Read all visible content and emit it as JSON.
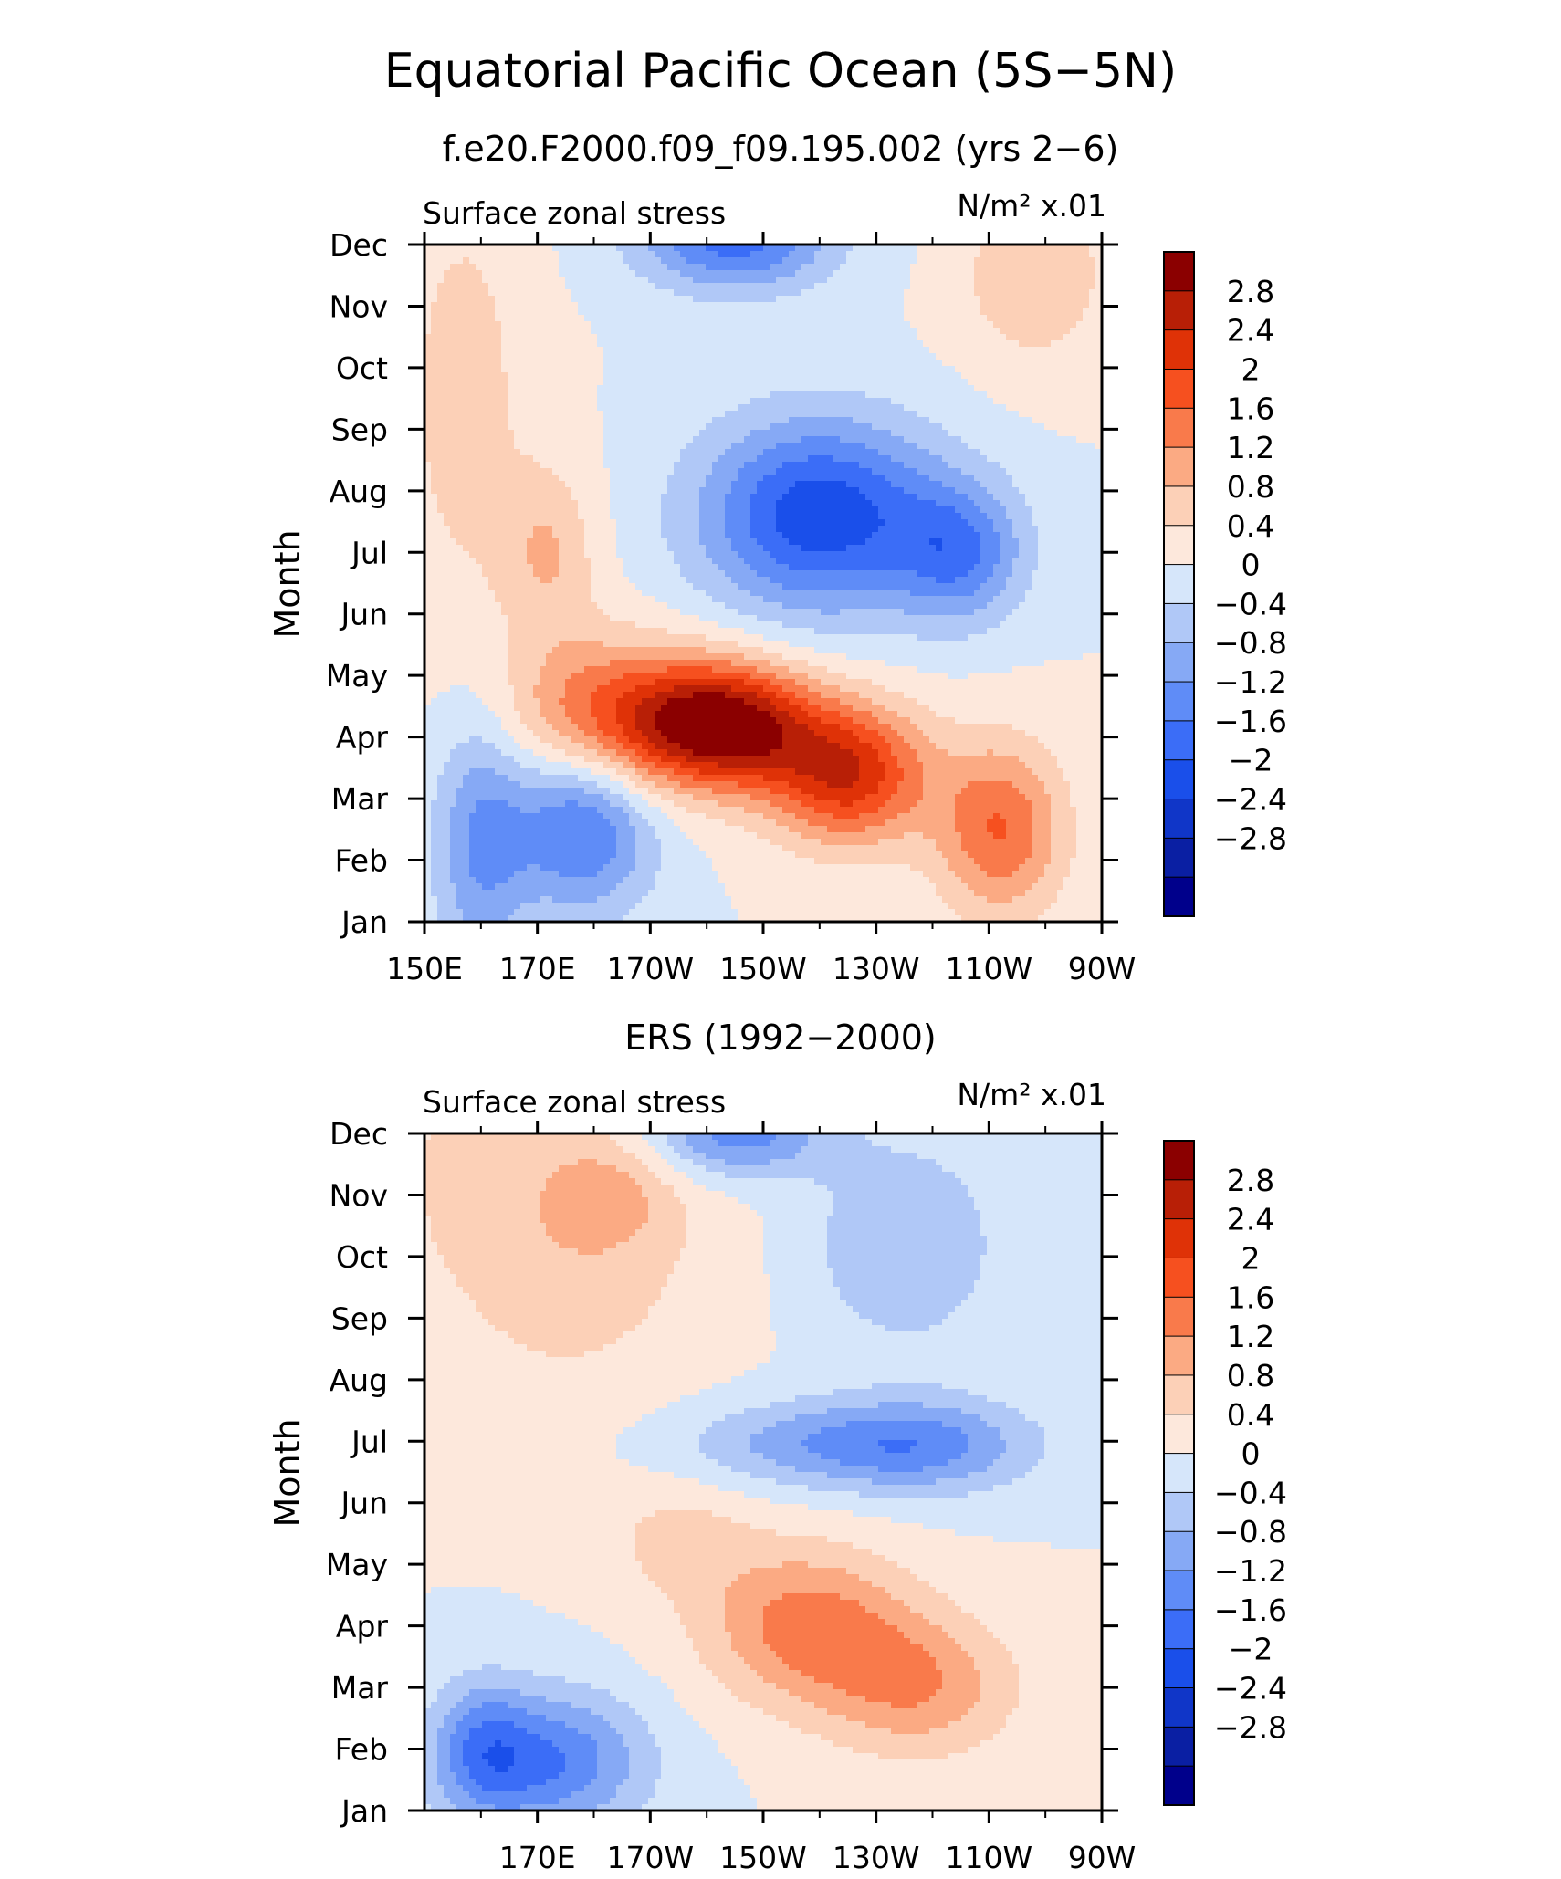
{
  "figure": {
    "title": "Equatorial Pacific Ocean (5S−5N)",
    "colorscale": [
      "#00008b",
      "#0a1fa3",
      "#1036c8",
      "#1a4fea",
      "#3b6df7",
      "#5f8cf7",
      "#86a9f5",
      "#b0c8f7",
      "#d6e6fa",
      "#fde8dc",
      "#fcd0b7",
      "#fbaa83",
      "#f97a4b",
      "#f6501f",
      "#df3207",
      "#b81f06",
      "#8b0000"
    ],
    "colorbar_labels": [
      "2.8",
      "2.4",
      "2",
      "1.6",
      "1.2",
      "0.8",
      "0.4",
      "0",
      "−0.4",
      "−0.8",
      "−1.2",
      "−1.6",
      "−2",
      "−2.4",
      "−2.8"
    ]
  },
  "chart_data": [
    {
      "type": "heatmap",
      "title": "f.e20.F2000.f09_f09.195.002 (yrs 2−6)",
      "left_label": "Surface zonal stress",
      "right_label": "N/m² x.01",
      "ylabel": "Month",
      "x_tick_labels": [
        "150E",
        "170E",
        "170W",
        "150W",
        "130W",
        "110W",
        "90W"
      ],
      "y_tick_labels": [
        "Jan",
        "Feb",
        "Mar",
        "Apr",
        "May",
        "Jun",
        "Jul",
        "Aug",
        "Sep",
        "Oct",
        "Nov",
        "Dec"
      ],
      "longitude_range": [
        150,
        270
      ],
      "month_range": [
        1,
        12
      ],
      "features": [
        {
          "lon": 157,
          "month": 9.5,
          "value": 0.6,
          "sx": 8,
          "sy": 2.5
        },
        {
          "lon": 178,
          "month": 2.6,
          "value": -1.8,
          "sx": 9,
          "sy": 1.0
        },
        {
          "lon": 160,
          "month": 2.3,
          "value": -1.2,
          "sx": 6,
          "sy": 1.5
        },
        {
          "lon": 182,
          "month": 4.3,
          "value": 1.7,
          "sx": 12,
          "sy": 0.9
        },
        {
          "lon": 203,
          "month": 4.2,
          "value": 3.1,
          "sx": 11,
          "sy": 0.7
        },
        {
          "lon": 225,
          "month": 3.4,
          "value": 2.3,
          "sx": 10,
          "sy": 0.8
        },
        {
          "lon": 252,
          "month": 2.5,
          "value": 1.6,
          "sx": 8,
          "sy": 1.0
        },
        {
          "lon": 172,
          "month": 7.0,
          "value": 0.8,
          "sx": 6,
          "sy": 1.0
        },
        {
          "lon": 220,
          "month": 7.6,
          "value": -2.3,
          "sx": 15,
          "sy": 1.1
        },
        {
          "lon": 245,
          "month": 7.0,
          "value": -1.4,
          "sx": 8,
          "sy": 0.8
        },
        {
          "lon": 205,
          "month": 12.1,
          "value": -1.8,
          "sx": 12,
          "sy": 0.6
        },
        {
          "lon": 258,
          "month": 11.5,
          "value": 0.8,
          "sx": 9,
          "sy": 1.0
        }
      ]
    },
    {
      "type": "heatmap",
      "title": "ERS (1992−2000)",
      "left_label": "Surface zonal stress",
      "right_label": "N/m² x.01",
      "ylabel": "Month",
      "x_tick_labels": [
        "170E",
        "170W",
        "150W",
        "130W",
        "110W",
        "90W"
      ],
      "y_tick_labels": [
        "Jan",
        "Feb",
        "Mar",
        "Apr",
        "May",
        "Jun",
        "Jul",
        "Aug",
        "Sep",
        "Oct",
        "Nov",
        "Dec"
      ],
      "longitude_range": [
        150,
        270
      ],
      "month_range": [
        1,
        12
      ],
      "features": [
        {
          "lon": 175,
          "month": 10.4,
          "value": 0.7,
          "sx": 18,
          "sy": 1.9
        },
        {
          "lon": 183,
          "month": 11.0,
          "value": 0.5,
          "sx": 8,
          "sy": 0.6
        },
        {
          "lon": 155,
          "month": 11.6,
          "value": 0.3,
          "sx": 5,
          "sy": 1.0
        },
        {
          "lon": 172,
          "month": 1.8,
          "value": -1.6,
          "sx": 12,
          "sy": 0.8
        },
        {
          "lon": 160,
          "month": 2.0,
          "value": -1.0,
          "sx": 6,
          "sy": 0.8
        },
        {
          "lon": 205,
          "month": 12.0,
          "value": -1.5,
          "sx": 11,
          "sy": 0.5
        },
        {
          "lon": 235,
          "month": 10.2,
          "value": -0.8,
          "sx": 12,
          "sy": 1.2
        },
        {
          "lon": 225,
          "month": 6.95,
          "value": -1.2,
          "sx": 20,
          "sy": 0.5
        },
        {
          "lon": 240,
          "month": 6.9,
          "value": -0.6,
          "sx": 12,
          "sy": 0.6
        },
        {
          "lon": 218,
          "month": 4.0,
          "value": 1.4,
          "sx": 13,
          "sy": 0.9
        },
        {
          "lon": 238,
          "month": 3.0,
          "value": 1.1,
          "sx": 12,
          "sy": 0.8
        },
        {
          "lon": 195,
          "month": 5.4,
          "value": 0.5,
          "sx": 10,
          "sy": 0.7
        }
      ]
    }
  ]
}
